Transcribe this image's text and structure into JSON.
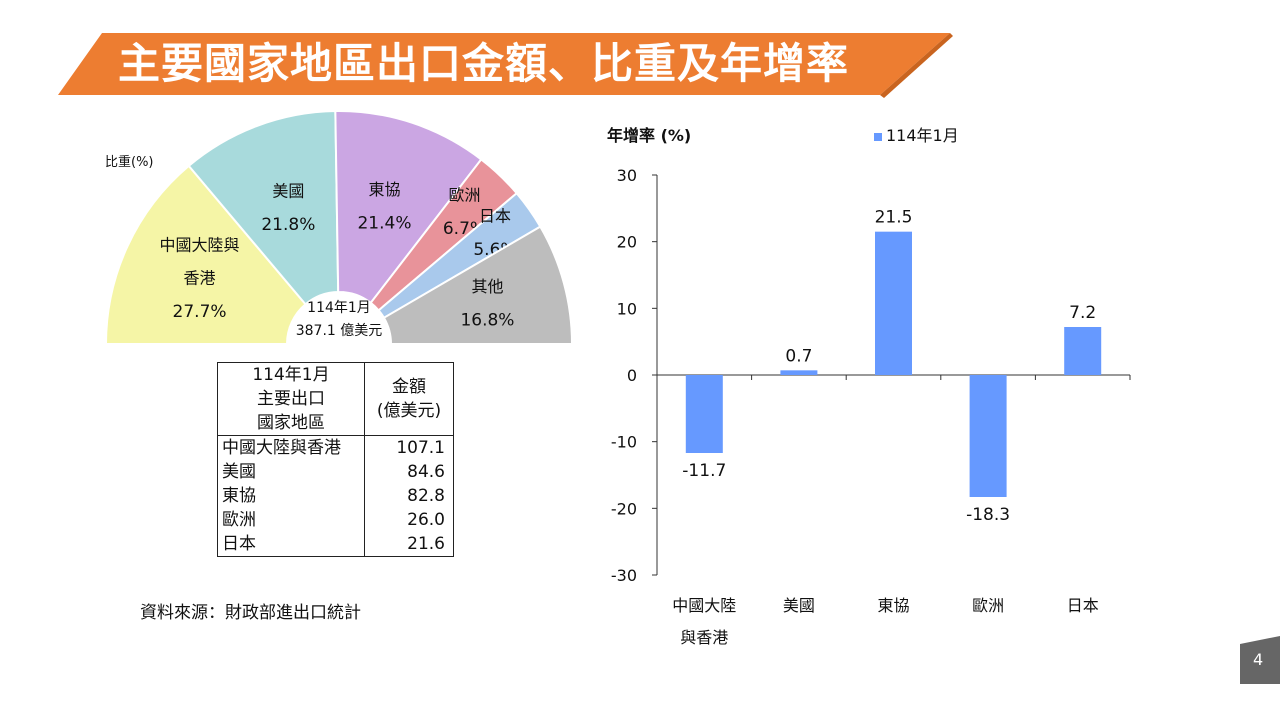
{
  "title": "主要國家地區出口金額、比重及年增率",
  "colors": {
    "banner": "#ED7D31",
    "bar": "#6699FF"
  },
  "pie": {
    "label": "比重(%)",
    "center_line1": "114年1月",
    "center_line2": "387.1 億美元",
    "slices": [
      {
        "name_lines": [
          "中國大陸與",
          "香港"
        ],
        "value": 27.7,
        "value_label": "27.7%",
        "color": "#F5F5A6"
      },
      {
        "name_lines": [
          "美國"
        ],
        "value": 21.8,
        "value_label": "21.8%",
        "color": "#A8DADC"
      },
      {
        "name_lines": [
          "東協"
        ],
        "value": 21.4,
        "value_label": "21.4%",
        "color": "#CBA6E3"
      },
      {
        "name_lines": [
          "歐洲"
        ],
        "value": 6.7,
        "value_label": "6.7%",
        "color": "#E8939A"
      },
      {
        "name_lines": [
          "日本"
        ],
        "value": 5.6,
        "value_label": "5.6%",
        "color": "#A9C9EC"
      },
      {
        "name_lines": [
          "其他"
        ],
        "value": 16.8,
        "value_label": "16.8%",
        "color": "#BDBDBD"
      }
    ]
  },
  "table": {
    "header_col1_lines": [
      "114年1月",
      "主要出口",
      "國家地區"
    ],
    "header_col2_lines": [
      "金額",
      "(億美元)"
    ],
    "rows": [
      {
        "name": "中國大陸與香港",
        "value": "107.1"
      },
      {
        "name": "美國",
        "value": "84.6"
      },
      {
        "name": "東協",
        "value": "82.8"
      },
      {
        "name": "歐洲",
        "value": "26.0"
      },
      {
        "name": "日本",
        "value": "21.6"
      }
    ]
  },
  "source": "資料來源：財政部進出口統計",
  "page_number": "4",
  "chart_data": [
    {
      "type": "pie",
      "title": "",
      "categories": [
        "中國大陸與香港",
        "美國",
        "東協",
        "歐洲",
        "日本",
        "其他"
      ],
      "values": [
        27.7,
        21.8,
        21.4,
        6.7,
        5.6,
        16.8
      ],
      "unit": "比重(%)"
    },
    {
      "type": "bar",
      "ylabel": "年增率 (%)",
      "xlabel": "",
      "categories": [
        [
          "中國大陸",
          "與香港"
        ],
        [
          "美國"
        ],
        [
          "東協"
        ],
        [
          "歐洲"
        ],
        [
          "日本"
        ]
      ],
      "series": [
        {
          "name": "114年1月",
          "values": [
            -11.7,
            0.7,
            21.5,
            -18.3,
            7.2
          ]
        }
      ],
      "value_labels": [
        "-11.7",
        "0.7",
        "21.5",
        "-18.3",
        "7.2"
      ],
      "ylim": [
        -30,
        30
      ],
      "yticks": [
        30,
        20,
        10,
        0,
        -10,
        -20,
        -30
      ],
      "legend": "top-center",
      "grid": false
    }
  ]
}
